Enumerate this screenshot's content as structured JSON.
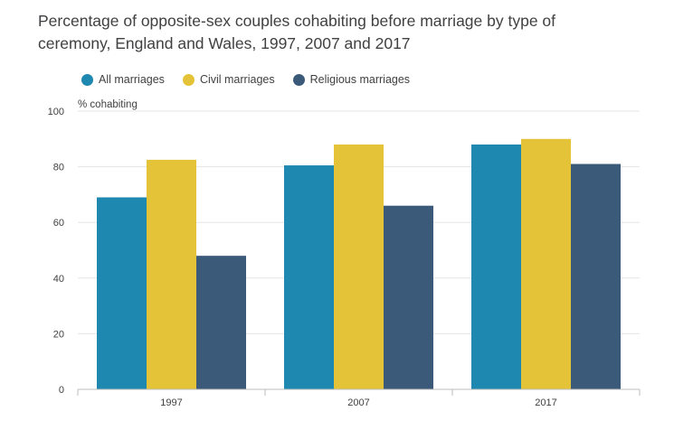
{
  "chart_data": {
    "type": "bar",
    "title": "Percentage of opposite-sex couples cohabiting before marriage by type of ceremony, England and Wales, 1997, 2007 and 2017",
    "xlabel": "",
    "ylabel": "% cohabiting",
    "ylim": [
      0,
      100
    ],
    "yticks": [
      0,
      20,
      40,
      60,
      80,
      100
    ],
    "categories": [
      "1997",
      "2007",
      "2017"
    ],
    "series": [
      {
        "name": "All marriages",
        "color": "#1f88b1",
        "values": [
          69,
          80.5,
          88
        ]
      },
      {
        "name": "Civil marriages",
        "color": "#e5c338",
        "values": [
          82.5,
          88,
          90
        ]
      },
      {
        "name": "Religious marriages",
        "color": "#3b5a7a",
        "values": [
          48,
          66,
          81
        ]
      }
    ],
    "legend_position": "top-left"
  }
}
